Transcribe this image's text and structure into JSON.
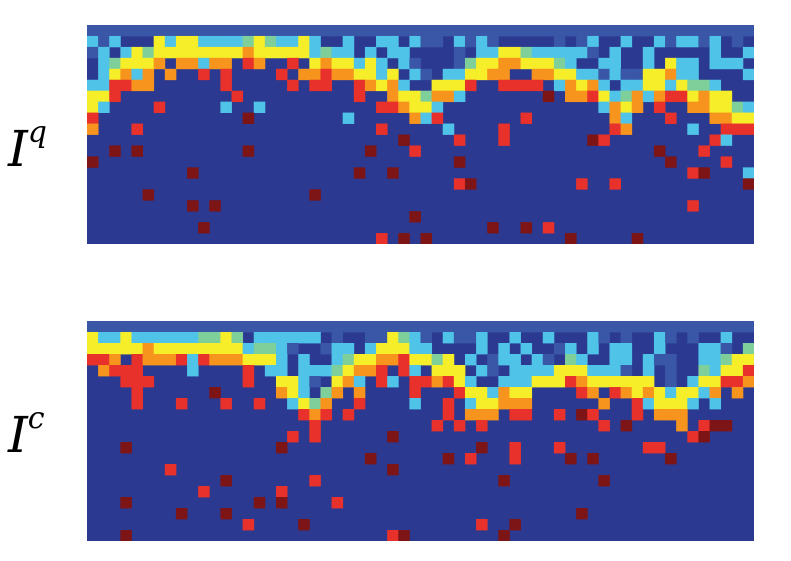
{
  "chart_data": [
    {
      "type": "heatmap",
      "row_label": {
        "base": "I",
        "sup": "q"
      },
      "colors": {
        "background": "#2b3990",
        "background2": "#3a56a6",
        "light_blue": "#4fc3e8",
        "green": "#7fcf9a",
        "yellow": "#f6ee28",
        "orange": "#f7941d",
        "red": "#e8312a",
        "dark_red": "#7d1416"
      }
    },
    {
      "type": "heatmap",
      "row_label": {
        "base": "I",
        "sup": "c"
      },
      "colors": {
        "background": "#2b3990",
        "background2": "#3a56a6",
        "light_blue": "#4fc3e8",
        "green": "#7fcf9a",
        "yellow": "#f6ee28",
        "orange": "#f7941d",
        "red": "#e8312a",
        "dark_red": "#7d1416"
      }
    }
  ]
}
